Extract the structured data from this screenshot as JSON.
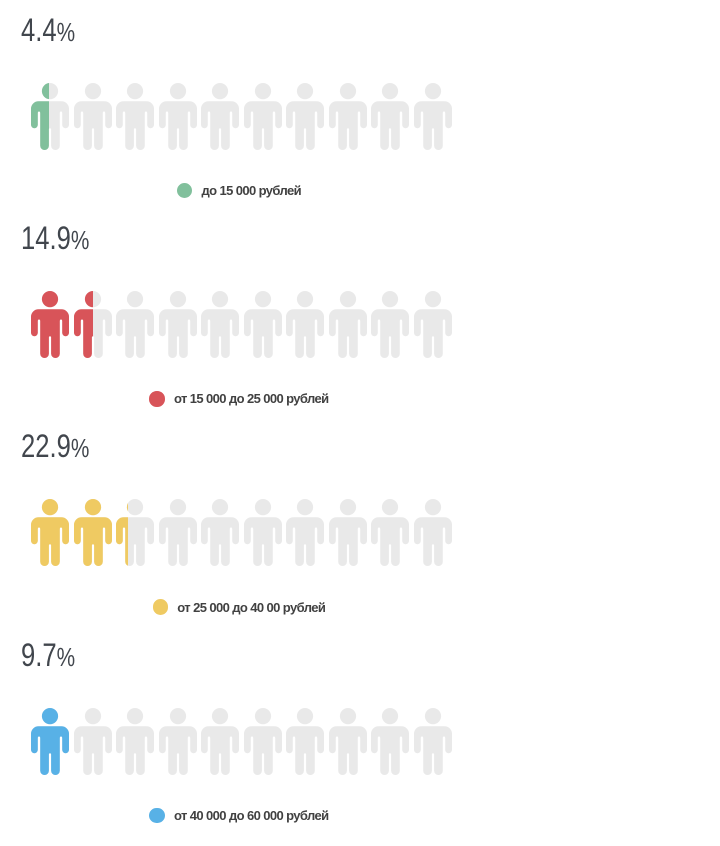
{
  "page": {
    "background": "#ffffff"
  },
  "chart_data": {
    "type": "pictogram",
    "icon": "person-icon",
    "icons_per_row": 10,
    "icon_unit_percent": 10,
    "inactive_color": "#e9e9e9",
    "value_label_color": "#41464d",
    "legend_label_color": "#414141",
    "rows": [
      {
        "value_label": "4.4%",
        "value_percent": 4.4,
        "color": "#81c09c",
        "legend": "до 15 000 рублей"
      },
      {
        "value_label": "14.9%",
        "value_percent": 14.9,
        "color": "#d85459",
        "legend": "от 15 000 до 25 000 рублей"
      },
      {
        "value_label": "22.9%",
        "value_percent": 22.9,
        "color": "#efca62",
        "legend": "от 25 000 до 40 00 рублей"
      },
      {
        "value_label": "9.7%",
        "value_percent": 9.7,
        "color": "#58b1e6",
        "legend": "от 40 000 до 60 000 рублей"
      }
    ]
  }
}
